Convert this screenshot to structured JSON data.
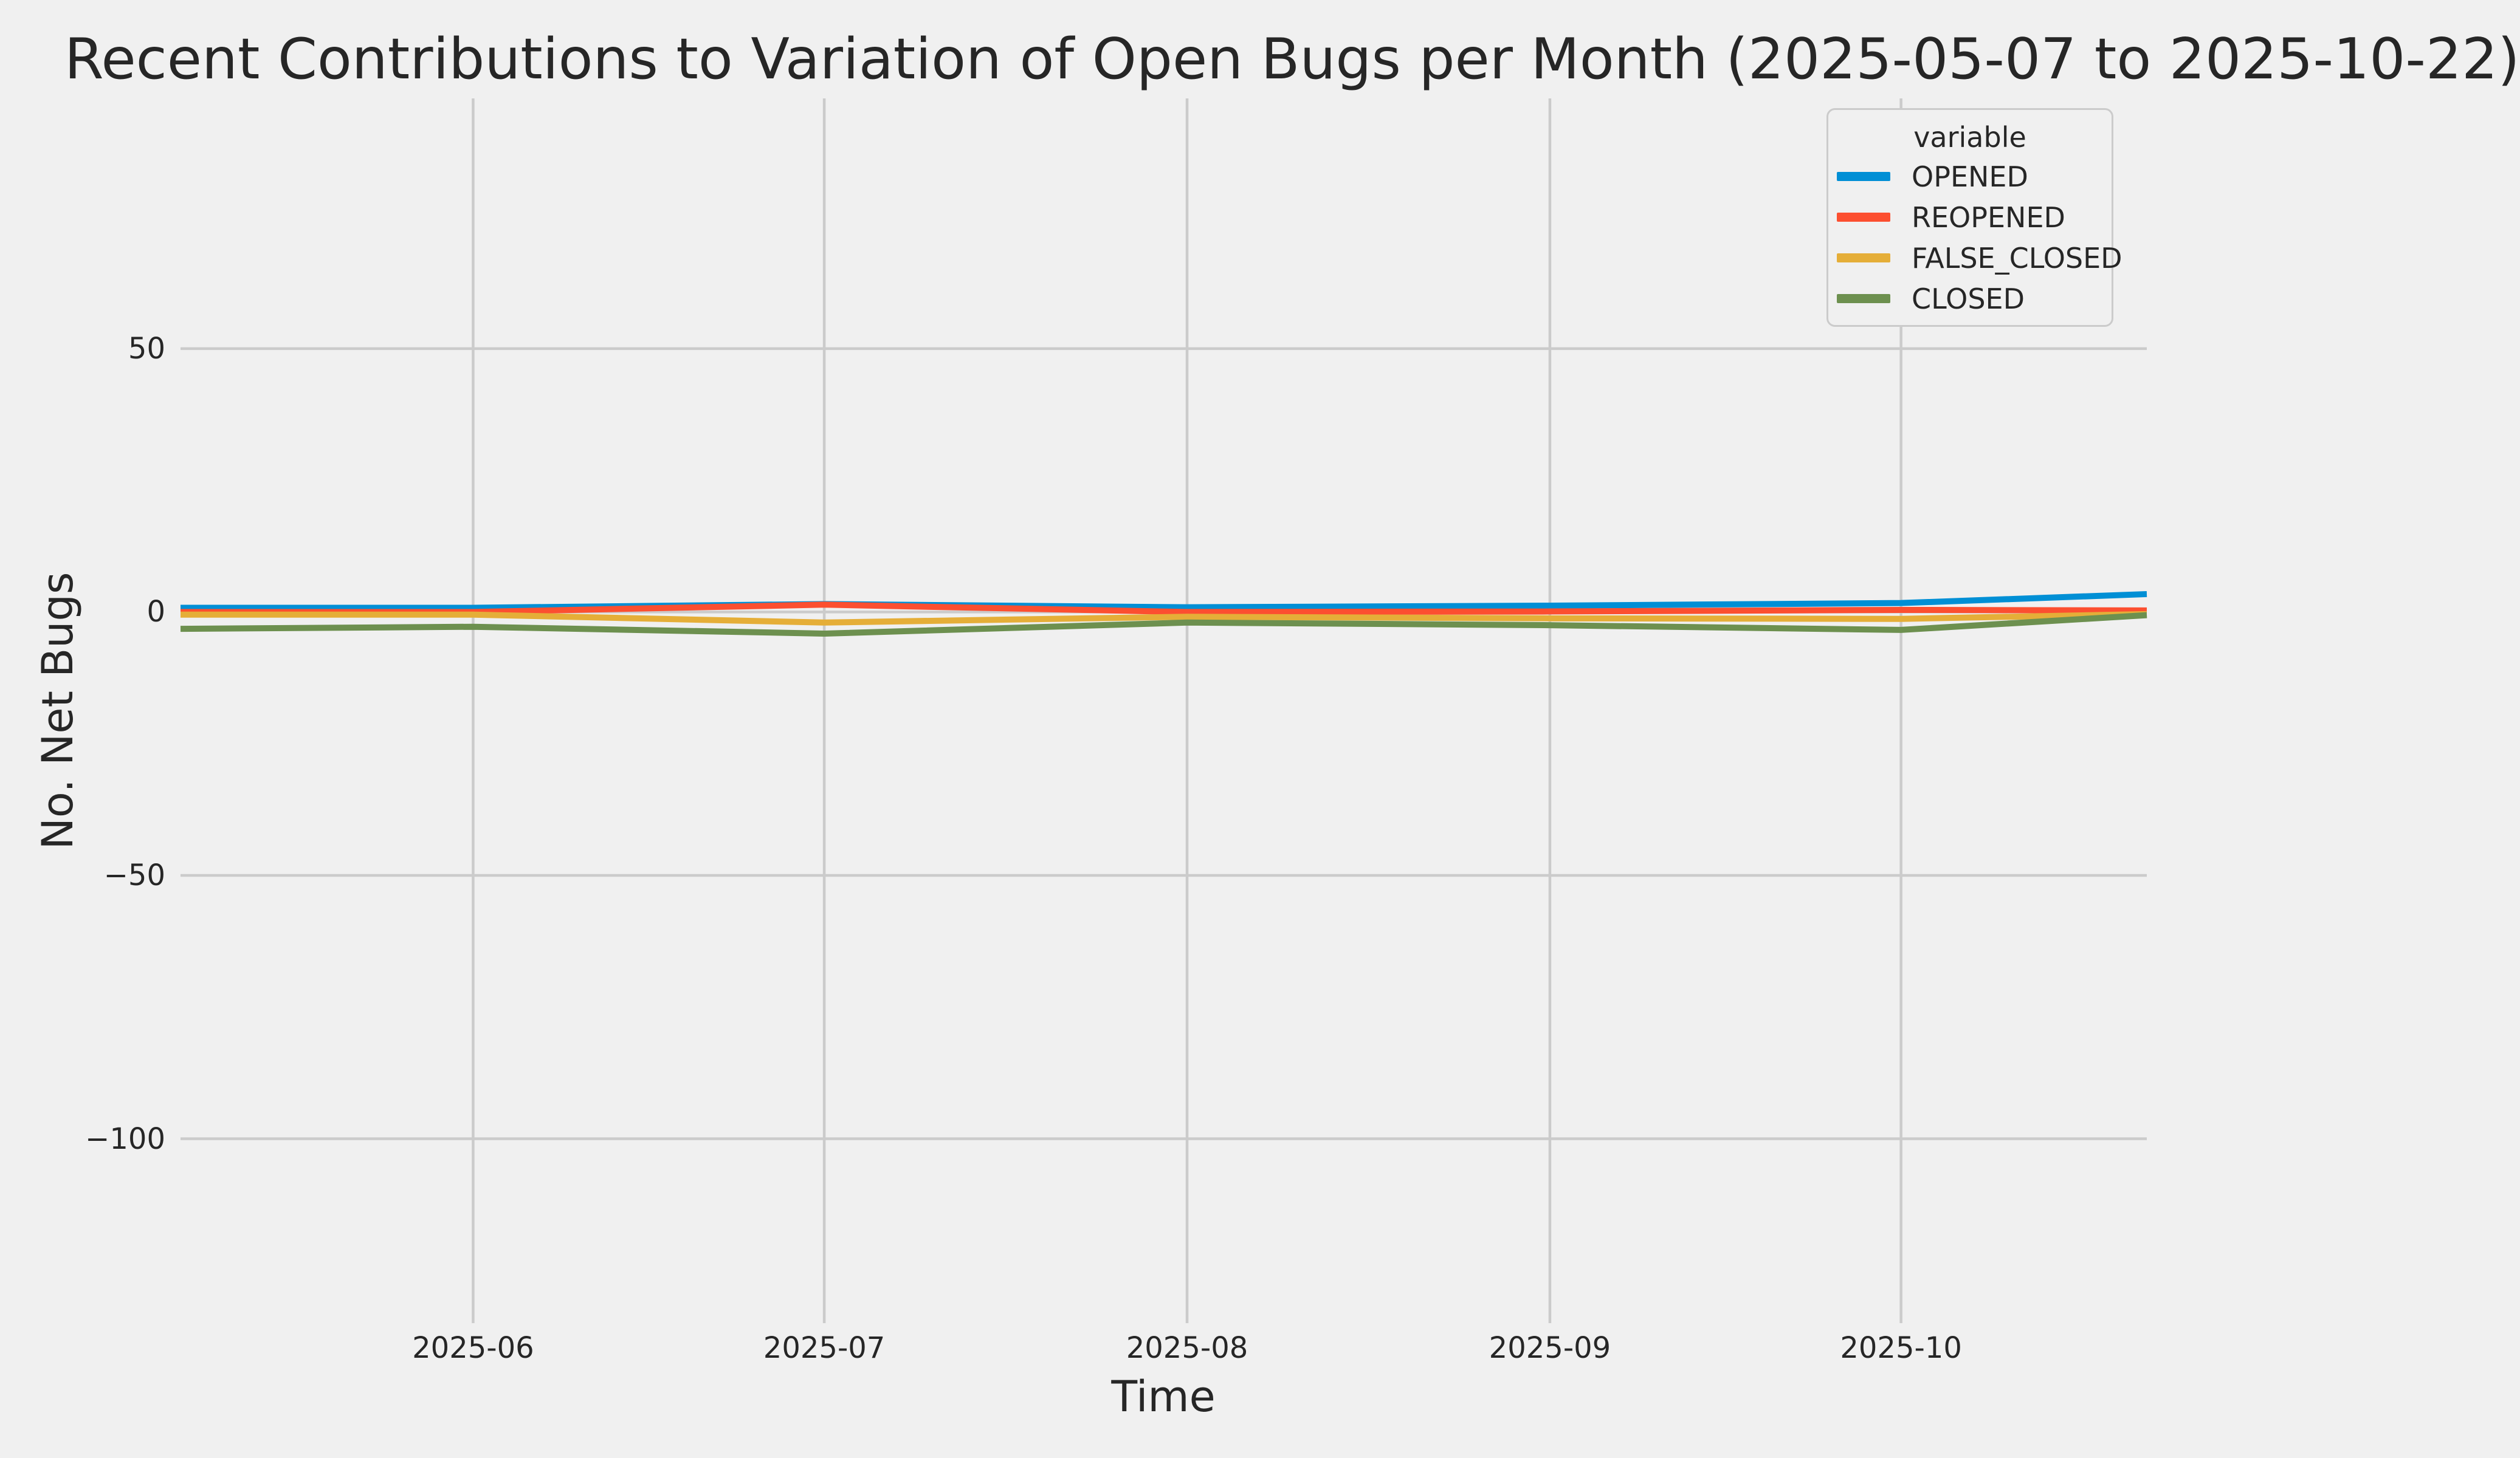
{
  "style": {
    "background": "#f0f0f0",
    "grid_color": "#cbcbcb",
    "text_color": "#262626"
  },
  "chart_data": {
    "type": "line",
    "title": "Recent Contributions to Variation of Open Bugs per Month (2025-05-07 to 2025-10-22)",
    "xlabel": "Time",
    "ylabel": "No. Net Bugs",
    "legend_title": "variable",
    "legend_position": "upper right",
    "grid": true,
    "x": [
      "2025-05-07",
      "2025-06-01",
      "2025-07-01",
      "2025-08-01",
      "2025-09-01",
      "2025-10-01",
      "2025-10-22"
    ],
    "series": [
      {
        "name": "OPENED",
        "color": "#008fd5",
        "values": [
          0.8,
          0.8,
          1.5,
          0.9,
          1.2,
          1.7,
          3.4
        ]
      },
      {
        "name": "REOPENED",
        "color": "#fc4f30",
        "values": [
          0.0,
          0.0,
          1.4,
          0.0,
          0.1,
          0.4,
          0.3
        ]
      },
      {
        "name": "FALSE_CLOSED",
        "color": "#e5ae38",
        "values": [
          -0.5,
          -0.5,
          -2.0,
          -0.9,
          -1.2,
          -1.3,
          -0.4
        ]
      },
      {
        "name": "CLOSED",
        "color": "#6d904f",
        "values": [
          -3.2,
          -2.8,
          -4.1,
          -2.0,
          -2.5,
          -3.4,
          -0.6
        ]
      }
    ],
    "xlim": [
      "2025-05-07",
      "2025-10-22"
    ],
    "ylim": [
      -135,
      97.5
    ],
    "xticks": [
      {
        "date": "2025-06-01",
        "label": "2025-06"
      },
      {
        "date": "2025-07-01",
        "label": "2025-07"
      },
      {
        "date": "2025-08-01",
        "label": "2025-08"
      },
      {
        "date": "2025-09-01",
        "label": "2025-09"
      },
      {
        "date": "2025-10-01",
        "label": "2025-10"
      }
    ],
    "yticks": [
      {
        "value": 50,
        "label": "50"
      },
      {
        "value": 0,
        "label": "0"
      },
      {
        "value": -50,
        "label": "−50"
      },
      {
        "value": -100,
        "label": "−100"
      }
    ]
  }
}
